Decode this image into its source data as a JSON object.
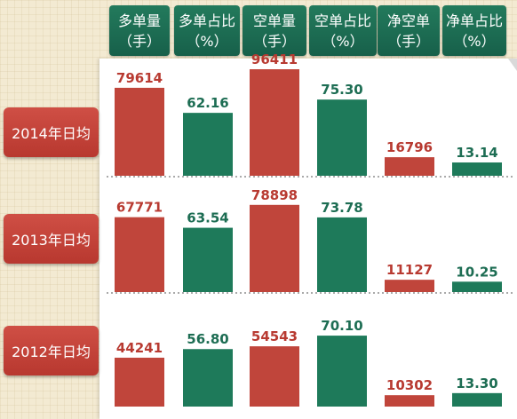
{
  "headers": [
    {
      "line1": "多单量",
      "line2": "（手）"
    },
    {
      "line1": "多单占比",
      "line2": "（%）"
    },
    {
      "line1": "空单量",
      "line2": "（手）"
    },
    {
      "line1": "空单占比",
      "line2": "（%）"
    },
    {
      "line1": "净空单",
      "line2": "（手）"
    },
    {
      "line1": "净单占比",
      "line2": "（%）"
    }
  ],
  "rows": [
    "2014年日均",
    "2013年日均",
    "2012年日均"
  ],
  "colors": {
    "red": "#c0453b",
    "green": "#1e7a5a",
    "red_text": "#b83a31",
    "green_text": "#1d6d53"
  },
  "chart_data": {
    "type": "bar",
    "categories": [
      "多单量",
      "多单占比",
      "空单量",
      "空单占比",
      "净空单",
      "净单占比"
    ],
    "series": [
      {
        "name": "2014年日均",
        "values": [
          79614,
          62.16,
          96411,
          75.3,
          16796,
          13.14
        ],
        "labels": [
          "79614",
          "62.16",
          "96411",
          "75.30",
          "16796",
          "13.14"
        ]
      },
      {
        "name": "2013年日均",
        "values": [
          67771,
          63.54,
          78898,
          73.78,
          11127,
          10.25
        ],
        "labels": [
          "67771",
          "63.54",
          "78898",
          "73.78",
          "11127",
          "10.25"
        ]
      },
      {
        "name": "2012年日均",
        "values": [
          44241,
          56.8,
          54543,
          70.1,
          10302,
          13.3
        ],
        "labels": [
          "44241",
          "56.80",
          "54543",
          "70.10",
          "10302",
          "13.30"
        ]
      }
    ],
    "column_colors": [
      "red",
      "green",
      "red",
      "green",
      "red",
      "green"
    ]
  }
}
